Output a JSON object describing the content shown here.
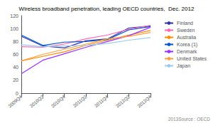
{
  "chart_data": {
    "type": "line",
    "title": "Wireless broadband penetration, leading OECD countries,  Dec. 2012",
    "annotations": [
      "2013Source : OECD"
    ],
    "categories": [
      "2009Q4",
      "2010Q2",
      "2010Q4",
      "2011Q2",
      "2011Q4",
      "2012Q2",
      "2012Q4"
    ],
    "series": [
      {
        "name": "Finland",
        "color": "#3333AA",
        "values": [
          88,
          73,
          70,
          81,
          84,
          101,
          104
        ]
      },
      {
        "name": "Sweden",
        "color": "#FF69B4",
        "values": [
          72,
          71,
          76,
          84,
          90,
          99,
          105
        ]
      },
      {
        "name": "Australia",
        "color": "#FF8C00",
        "values": [
          50,
          57,
          64,
          74,
          82,
          90,
          97
        ]
      },
      {
        "name": "Korea (1)",
        "color": "#0055CC",
        "values": [
          90,
          74,
          79,
          80,
          83,
          98,
          103
        ]
      },
      {
        "name": "Denmark",
        "color": "#9B30FF",
        "values": [
          30,
          51,
          61,
          71,
          80,
          89,
          102
        ]
      },
      {
        "name": "United States",
        "color": "#FFA040",
        "values": [
          50,
          60,
          68,
          76,
          84,
          88,
          94
        ]
      },
      {
        "name": "Japan",
        "color": "#99CCEE",
        "values": [
          75,
          72,
          73,
          74,
          77,
          82,
          86
        ]
      }
    ],
    "ylim": [
      0,
      120
    ],
    "yticks": [
      0,
      20,
      40,
      60,
      80,
      100,
      120
    ],
    "grid": false,
    "legend": "upper right"
  }
}
